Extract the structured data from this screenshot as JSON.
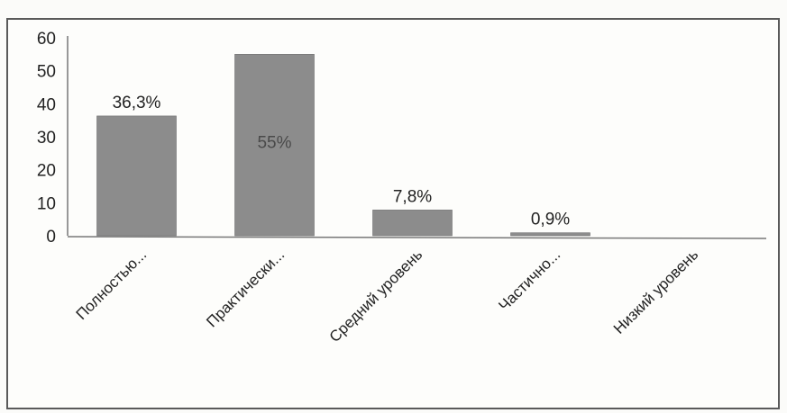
{
  "chart_data": {
    "type": "bar",
    "title": "",
    "xlabel": "",
    "ylabel": "",
    "categories": [
      "Полностью...",
      "Практически...",
      "Средний уровень",
      "Частично...",
      "Низкий уровень"
    ],
    "values": [
      36.3,
      55,
      7.8,
      0.9,
      0
    ],
    "data_labels": [
      "36,3%",
      "55%",
      "7,8%",
      "0,9%",
      ""
    ],
    "y_ticks": [
      "0",
      "10",
      "20",
      "30",
      "40",
      "50",
      "60"
    ],
    "ylim": [
      0,
      60
    ],
    "grid": false,
    "legend": "none",
    "colors": {
      "bar": "#8c8c8c",
      "bar_edge": "#6e6e6e",
      "axis": "#777777",
      "text": "#222222"
    }
  }
}
